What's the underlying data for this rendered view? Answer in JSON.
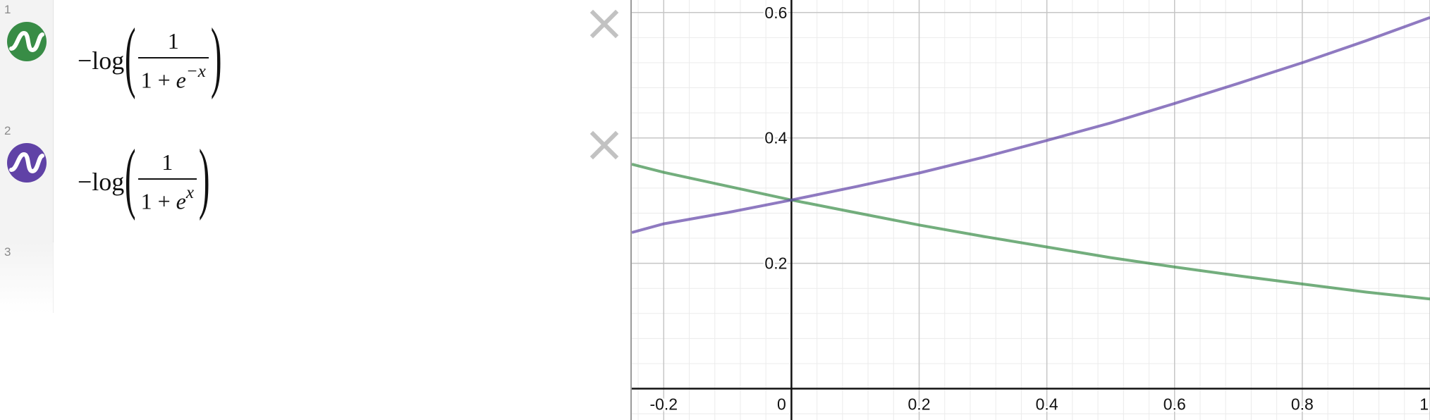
{
  "expressions": [
    {
      "index": "1",
      "color": "#388c46",
      "icon": "wave-icon",
      "neg_log": "−log",
      "numerator": "1",
      "den_base": "1 + ",
      "den_e": "e",
      "den_exp": "−x"
    },
    {
      "index": "2",
      "color": "#6042a6",
      "icon": "wave-icon",
      "neg_log": "−log",
      "numerator": "1",
      "den_base": "1 + ",
      "den_e": "e",
      "den_exp": "x"
    },
    {
      "index": "3"
    }
  ],
  "delete_icon": "close-icon",
  "chart_data": {
    "type": "line",
    "xlim": [
      -0.25,
      1.0
    ],
    "ylim": [
      -0.05,
      0.62
    ],
    "grid": true,
    "x_ticks": [
      "-0.2",
      "0",
      "0.2",
      "0.4",
      "0.6",
      "0.8",
      "1"
    ],
    "y_ticks": [
      "0.2",
      "0.4",
      "0.6"
    ],
    "series": [
      {
        "color": "#388c46",
        "x": [
          -0.25,
          -0.2,
          -0.1,
          0.0,
          0.1,
          0.2,
          0.3,
          0.4,
          0.5,
          0.6,
          0.7,
          0.8,
          0.9,
          1.0
        ],
        "y": [
          0.358,
          0.345,
          0.323,
          0.301,
          0.281,
          0.261,
          0.243,
          0.226,
          0.209,
          0.194,
          0.18,
          0.167,
          0.154,
          0.143
        ]
      },
      {
        "color": "#6042a6",
        "x": [
          -0.25,
          -0.2,
          -0.1,
          0.0,
          0.1,
          0.2,
          0.3,
          0.4,
          0.5,
          0.6,
          0.7,
          0.8,
          0.9,
          1.0
        ],
        "y": [
          0.249,
          0.263,
          0.281,
          0.301,
          0.322,
          0.344,
          0.369,
          0.396,
          0.424,
          0.455,
          0.487,
          0.52,
          0.555,
          0.592
        ]
      }
    ]
  }
}
